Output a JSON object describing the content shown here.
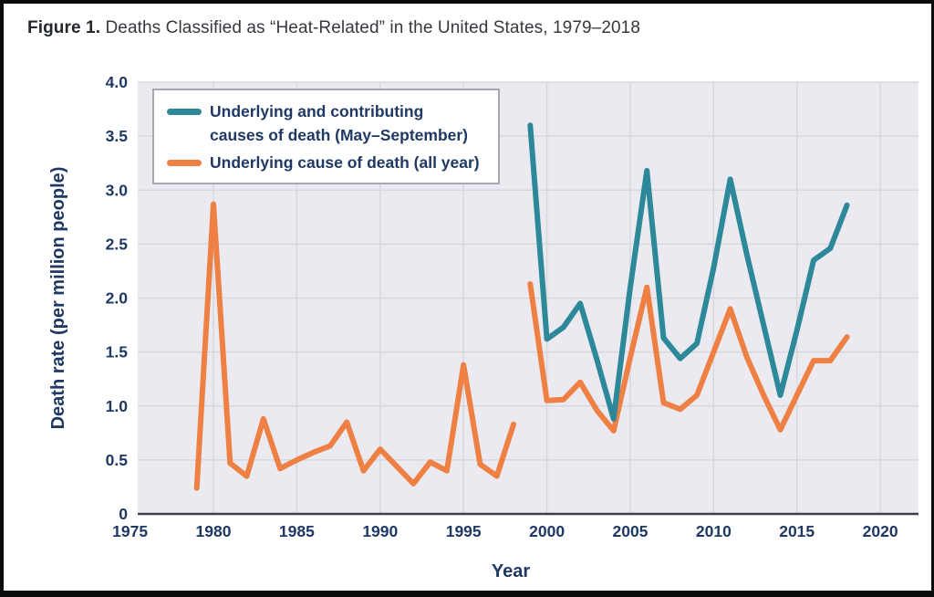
{
  "figure": {
    "label": "Figure 1.",
    "title": " Deaths Classified as “Heat-Related” in the United States, 1979–2018"
  },
  "legend": {
    "items": [
      {
        "lines": [
          "Underlying and contributing",
          "causes of death (May–September)"
        ]
      },
      {
        "lines": [
          "Underlying cause of death (all year)"
        ]
      }
    ]
  },
  "chart_data": {
    "type": "line",
    "title": "Figure 1. Deaths Classified as “Heat-Related” in the United States, 1979–2018",
    "xlabel": "Year",
    "ylabel": "Death rate (per million people)",
    "xlim": [
      1975.46,
      2022.29
    ],
    "ylim": [
      0,
      4.0
    ],
    "x_ticks": [
      1975,
      1980,
      1985,
      1990,
      1995,
      2000,
      2005,
      2010,
      2015,
      2020
    ],
    "y_ticks": [
      0,
      0.5,
      1.0,
      1.5,
      2.0,
      2.5,
      3.0,
      3.5,
      4.0
    ],
    "y_tick_labels": [
      "0",
      "0.5",
      "1.0",
      "1.5",
      "2.0",
      "2.5",
      "3.0",
      "3.5",
      "4.0"
    ],
    "grid": true,
    "legend_position": "top-left",
    "plot_bg": "#ebeaf1",
    "grid_color": "#d8d7de",
    "axis_line_color": "#3f3f49",
    "label_color": "#1f3864",
    "series": [
      {
        "name": "Underlying and contributing causes of death (May–September)",
        "color": "#2d8899",
        "segments": [
          {
            "x": [
              1999,
              2000,
              2001,
              2002,
              2003,
              2004,
              2005,
              2006,
              2007,
              2008,
              2009,
              2010,
              2011,
              2012,
              2013,
              2014,
              2015,
              2016,
              2017,
              2018
            ],
            "values": [
              3.6,
              1.62,
              1.73,
              1.95,
              1.43,
              0.88,
              2.1,
              3.18,
              1.63,
              1.44,
              1.58,
              2.28,
              3.1,
              2.4,
              1.75,
              1.1,
              1.7,
              2.35,
              2.46,
              2.86
            ]
          }
        ]
      },
      {
        "name": "Underlying cause of death (all year)",
        "color": "#ef8043",
        "segments": [
          {
            "x": [
              1979,
              1980,
              1981,
              1982,
              1983,
              1984,
              1985,
              1986,
              1987,
              1988,
              1989,
              1990,
              1991,
              1992,
              1993,
              1994,
              1995,
              1996,
              1997,
              1998
            ],
            "values": [
              0.24,
              2.87,
              0.47,
              0.35,
              0.88,
              0.42,
              0.5,
              0.57,
              0.63,
              0.85,
              0.4,
              0.6,
              0.44,
              0.28,
              0.48,
              0.4,
              1.38,
              0.46,
              0.35,
              0.83
            ]
          },
          {
            "x": [
              1999,
              2000,
              2001,
              2002,
              2003,
              2004,
              2005,
              2006,
              2007,
              2008,
              2009,
              2010,
              2011,
              2012,
              2013,
              2014,
              2015,
              2016,
              2017,
              2018
            ],
            "values": [
              2.13,
              1.05,
              1.06,
              1.22,
              0.96,
              0.77,
              1.45,
              2.1,
              1.03,
              0.97,
              1.1,
              1.5,
              1.9,
              1.45,
              1.1,
              0.78,
              1.1,
              1.42,
              1.42,
              1.64
            ]
          }
        ]
      }
    ]
  }
}
